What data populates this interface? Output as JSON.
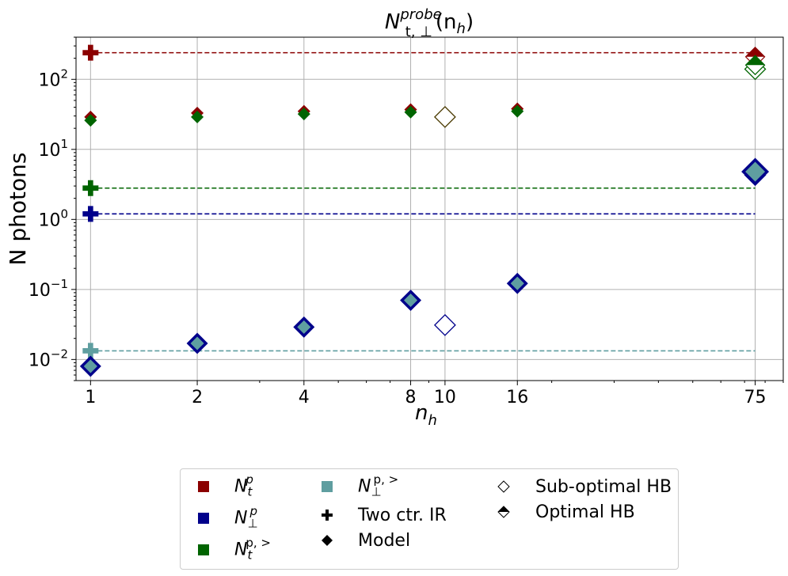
{
  "chart_data": {
    "type": "scatter",
    "title": "N^{probe}_{t,⊥}(n_h)",
    "title_parts": {
      "base": "N",
      "sup": "probe",
      "sub": "t, ⊥",
      "args": "(n",
      "args_sub": "h",
      "args_close": ")"
    },
    "xlabel": "n_h",
    "xlabel_parts": {
      "base": "n",
      "sub": "h"
    },
    "ylabel": "N photons",
    "xscale": "log",
    "yscale": "log",
    "xlim": [
      0.91,
      90
    ],
    "ylim": [
      0.005,
      400
    ],
    "grid": true,
    "xticks": [
      1,
      2,
      4,
      8,
      10,
      16,
      75
    ],
    "xtick_labels": [
      "1",
      "2",
      "4",
      "8",
      "10",
      "16",
      "75"
    ],
    "yticks": [
      0.01,
      0.1,
      1,
      10,
      100
    ],
    "ytick_labels": [
      {
        "base": "10",
        "exp": "−2"
      },
      {
        "base": "10",
        "exp": "−1"
      },
      {
        "base": "10",
        "exp": "0"
      },
      {
        "base": "10",
        "exp": "1"
      },
      {
        "base": "10",
        "exp": "2"
      }
    ],
    "series": [
      {
        "name": "N_t^p model",
        "color": "#8b0000",
        "marker": "diamond",
        "x": [
          1,
          2,
          4,
          8,
          16
        ],
        "y": [
          29,
          33,
          35,
          37,
          38
        ]
      },
      {
        "name": "N_t^{p,>} model",
        "color": "#006400",
        "marker": "diamond",
        "x": [
          1,
          2,
          4,
          8,
          16
        ],
        "y": [
          26,
          29,
          32,
          34,
          35
        ]
      },
      {
        "name": "N_⊥^p model",
        "color": "#00008b",
        "fill": "#5f9ea0",
        "marker": "diamond-outline",
        "x": [
          1,
          2,
          4,
          8,
          16
        ],
        "y": [
          0.008,
          0.017,
          0.029,
          0.07,
          0.122
        ]
      }
    ],
    "hlines": [
      {
        "name": "N_t^p two ctr. IR",
        "color": "#8b0000",
        "y": 240,
        "x_from": 1,
        "x_to": 75
      },
      {
        "name": "N_t^{p,>} two ctr. IR",
        "color": "#006400",
        "y": 2.8,
        "x_from": 1,
        "x_to": 75
      },
      {
        "name": "N_⊥^p two ctr. IR",
        "color": "#00008b",
        "y": 1.2,
        "x_from": 1,
        "x_to": 75
      },
      {
        "name": "N_⊥^{p,>} two ctr. IR",
        "color": "#5f9ea0",
        "y": 0.0133,
        "x_from": 1,
        "x_to": 75
      }
    ],
    "suboptimal_hb": [
      {
        "x": 10,
        "y": 29,
        "color": "#4a3a00"
      },
      {
        "x": 10,
        "y": 0.031,
        "color": "#00008b"
      },
      {
        "x": 75,
        "y": 140,
        "color": "#006400"
      },
      {
        "x": 75,
        "y": 4.3,
        "color": "#00008b"
      }
    ],
    "optimal_hb": [
      {
        "x": 75,
        "y": 210,
        "color": "#8b0000"
      },
      {
        "x": 75,
        "y": 160,
        "color": "#006400"
      },
      {
        "x": 75,
        "y": 4.8,
        "color": "#00008b",
        "fill": "#5f9ea0"
      }
    ],
    "legend": {
      "placement": "below",
      "entries": [
        {
          "id": "nt",
          "base": "N",
          "sub": "t",
          "sup": "p",
          "swatch": "square",
          "color": "#8b0000"
        },
        {
          "id": "nperp",
          "base": "N",
          "sub": "⊥",
          "sup": "p",
          "swatch": "square",
          "color": "#00008b"
        },
        {
          "id": "nt_gt",
          "base": "N",
          "sub": "t",
          "sup": "p, >",
          "swatch": "square",
          "color": "#006400"
        },
        {
          "id": "nperp_gt",
          "base": "N",
          "sub": "⊥",
          "sup": "p, >",
          "swatch": "square",
          "color": "#5f9ea0"
        },
        {
          "id": "two_ctr",
          "text": "Two ctr. IR",
          "swatch": "plus",
          "color": "#000000"
        },
        {
          "id": "model",
          "text": "Model",
          "swatch": "diamond",
          "color": "#000000"
        },
        {
          "id": "subopt",
          "text": "Sub-optimal HB",
          "swatch": "diamond-open",
          "color": "#000000"
        },
        {
          "id": "opt",
          "text": "Optimal HB",
          "swatch": "diamond-half",
          "color": "#000000"
        }
      ]
    }
  }
}
